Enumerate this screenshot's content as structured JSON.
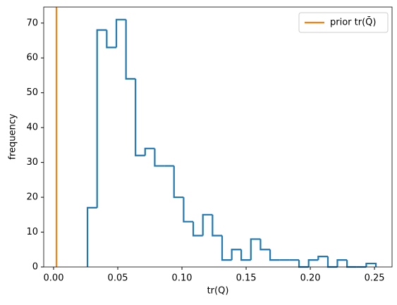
{
  "chart_data": {
    "type": "histogram",
    "xlabel": "tr(Q)",
    "ylabel": "frequency",
    "bins": [
      0.0264,
      0.0339,
      0.0414,
      0.0489,
      0.0564,
      0.0638,
      0.0713,
      0.0788,
      0.0863,
      0.0938,
      0.1013,
      0.1088,
      0.1163,
      0.1238,
      0.1313,
      0.1388,
      0.1462,
      0.1537,
      0.1612,
      0.1687,
      0.1762,
      0.1837,
      0.1912,
      0.1987,
      0.2062,
      0.2137,
      0.2211,
      0.2286,
      0.2361,
      0.2436,
      0.2511
    ],
    "counts": [
      17,
      68,
      63,
      71,
      54,
      32,
      34,
      29,
      29,
      20,
      13,
      9,
      15,
      9,
      2,
      5,
      2,
      8,
      5,
      2,
      2,
      2,
      0,
      2,
      3,
      0,
      2,
      0,
      0,
      1
    ],
    "color": "#1f77b4",
    "reference_line": {
      "name": "prior tr(Q̄)",
      "x": 0.0022,
      "color": "#ff7f0e"
    },
    "legend": "upper right",
    "xlim": [
      -0.0077,
      0.2637
    ],
    "ylim": [
      0,
      74.6
    ],
    "xticks": [
      {
        "value": 0,
        "label": "0.00"
      },
      {
        "value": 0.05,
        "label": "0.05"
      },
      {
        "value": 0.1,
        "label": "0.10"
      },
      {
        "value": 0.15,
        "label": "0.15"
      },
      {
        "value": 0.2,
        "label": "0.20"
      },
      {
        "value": 0.25,
        "label": "0.25"
      }
    ],
    "yticks": [
      0,
      10,
      20,
      30,
      40,
      50,
      60,
      70
    ]
  }
}
